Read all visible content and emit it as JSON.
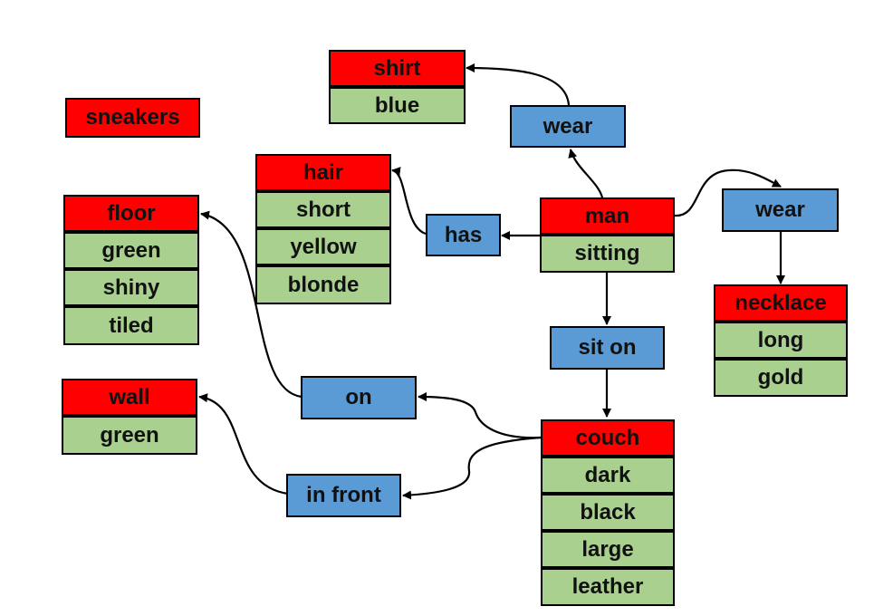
{
  "colors": {
    "object": "#ff0000",
    "attribute": "#a9d08e",
    "relation": "#5b9bd5",
    "edge": "#000000"
  },
  "objects": {
    "shirt": {
      "label": "shirt",
      "attributes": [
        "blue"
      ]
    },
    "sneakers": {
      "label": "sneakers",
      "attributes": []
    },
    "hair": {
      "label": "hair",
      "attributes": [
        "short",
        "yellow",
        "blonde"
      ]
    },
    "floor": {
      "label": "floor",
      "attributes": [
        "green",
        "shiny",
        "tiled"
      ]
    },
    "wall": {
      "label": "wall",
      "attributes": [
        "green"
      ]
    },
    "man": {
      "label": "man",
      "attributes": [
        "sitting"
      ]
    },
    "necklace": {
      "label": "necklace",
      "attributes": [
        "long",
        "gold"
      ]
    },
    "couch": {
      "label": "couch",
      "attributes": [
        "dark",
        "black",
        "large",
        "leather"
      ]
    }
  },
  "relations": {
    "wear_shirt": {
      "label": "wear"
    },
    "wear_necklace": {
      "label": "wear"
    },
    "has": {
      "label": "has"
    },
    "sit_on": {
      "label": "sit on"
    },
    "on": {
      "label": "on"
    },
    "in_front": {
      "label": "in front"
    }
  }
}
